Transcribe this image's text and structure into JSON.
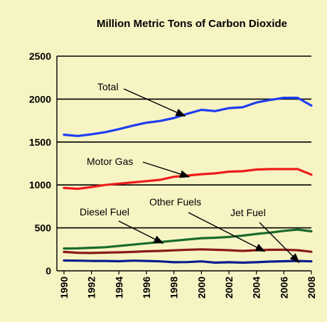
{
  "chart_data": {
    "type": "line",
    "title": "Million Metric Tons of Carbon Dioxide",
    "xlabel": "",
    "ylabel": "",
    "ylim": [
      0,
      2500
    ],
    "xlim": [
      1990,
      2008
    ],
    "yticks": [
      0,
      500,
      1000,
      1500,
      2000,
      2500
    ],
    "xticks": [
      1990,
      1992,
      1994,
      1996,
      1998,
      2000,
      2002,
      2004,
      2006,
      2008
    ],
    "grid": "horizontal",
    "x": [
      1990,
      1991,
      1992,
      1993,
      1994,
      1995,
      1996,
      1997,
      1998,
      1999,
      2000,
      2001,
      2002,
      2003,
      2004,
      2005,
      2006,
      2007,
      2008
    ],
    "series": [
      {
        "name": "Total",
        "color": "#1f3ef0",
        "values": [
          1585,
          1570,
          1590,
          1615,
          1650,
          1690,
          1725,
          1745,
          1780,
          1830,
          1875,
          1860,
          1895,
          1905,
          1960,
          1990,
          2015,
          2015,
          1925
        ]
      },
      {
        "name": "Motor Gas",
        "color": "#ee1c1c",
        "values": [
          965,
          955,
          975,
          1000,
          1015,
          1030,
          1045,
          1060,
          1095,
          1110,
          1125,
          1135,
          1155,
          1160,
          1180,
          1185,
          1185,
          1185,
          1120
        ]
      },
      {
        "name": "Diesel Fuel",
        "color": "#1a6b2a",
        "values": [
          260,
          262,
          268,
          275,
          290,
          305,
          320,
          335,
          350,
          365,
          380,
          385,
          395,
          410,
          430,
          445,
          465,
          480,
          460
        ]
      },
      {
        "name": "Other Fuels",
        "color": "#8b1a1a",
        "values": [
          220,
          210,
          208,
          212,
          215,
          220,
          228,
          232,
          238,
          245,
          250,
          245,
          240,
          232,
          240,
          245,
          245,
          240,
          222
        ]
      },
      {
        "name": "Jet Fuel",
        "color": "#0a1e8c",
        "values": [
          120,
          118,
          115,
          115,
          112,
          118,
          115,
          110,
          100,
          102,
          110,
          95,
          100,
          95,
          100,
          108,
          112,
          115,
          110
        ]
      }
    ],
    "annotations": [
      {
        "text": "Total",
        "series": "Total",
        "at_x": 1998.8
      },
      {
        "text": "Motor Gas",
        "series": "Motor Gas",
        "at_x": 1999.1
      },
      {
        "text": "Diesel Fuel",
        "series": "Diesel Fuel",
        "at_x": 1997.2
      },
      {
        "text": "Other Fuels",
        "series": "Other Fuels",
        "at_x": 2004.6
      },
      {
        "text": "Jet Fuel",
        "series": "Jet Fuel",
        "at_x": 2007.1
      }
    ]
  }
}
